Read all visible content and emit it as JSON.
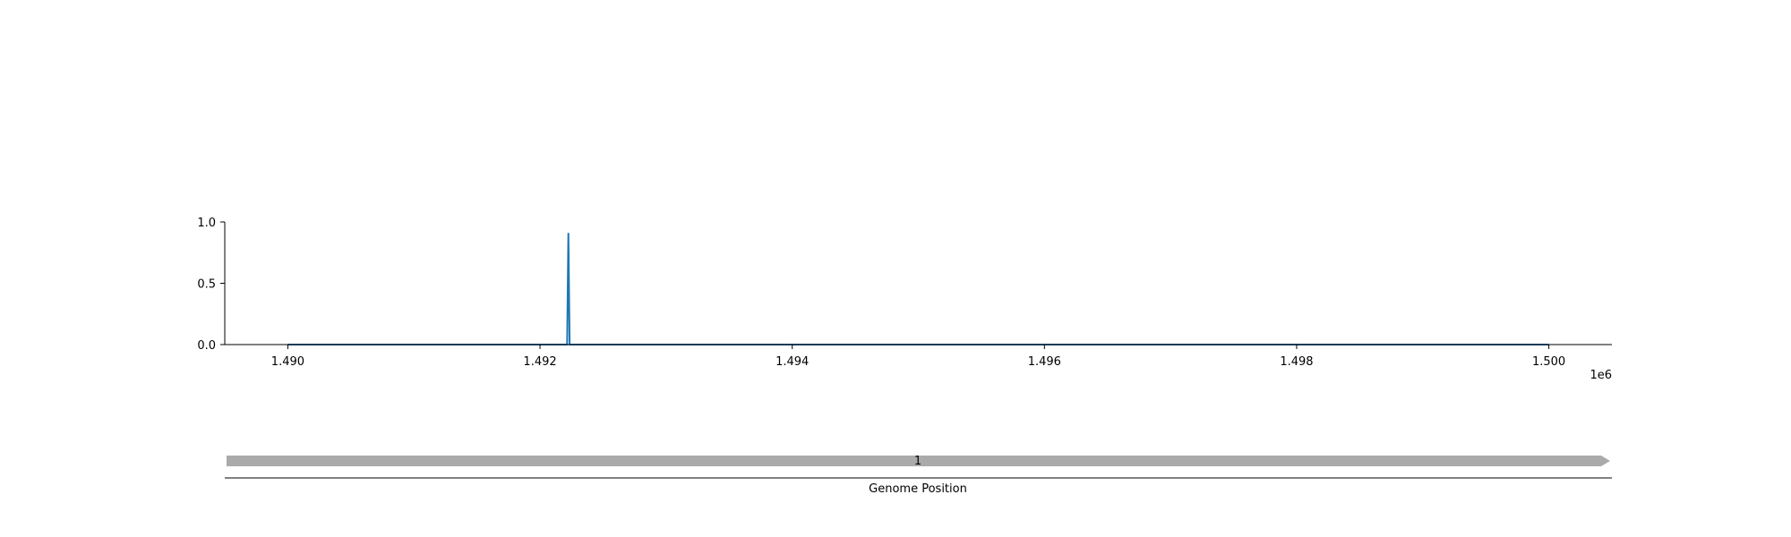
{
  "chart_data": {
    "type": "line",
    "x": [
      1490000,
      1492215,
      1492225,
      1492235,
      1500000
    ],
    "y": [
      0.0,
      0.0,
      0.91,
      0.0,
      0.0
    ],
    "xlim": [
      1489500,
      1500500
    ],
    "ylim": [
      0.0,
      1.0
    ],
    "xticks": [
      1490000,
      1492000,
      1494000,
      1496000,
      1498000,
      1500000
    ],
    "xtick_labels": [
      "1.490",
      "1.492",
      "1.494",
      "1.496",
      "1.498",
      "1.500"
    ],
    "yticks": [
      0.0,
      0.5,
      1.0
    ],
    "ytick_labels": [
      "0.0",
      "0.5",
      "1.0"
    ],
    "x_offset_label": "1e6",
    "line_color": "#1f77b4",
    "grid": false,
    "track": {
      "feature_label": "1",
      "feature_color": "#aaaaaa",
      "direction": "forward",
      "xlabel": "Genome Position"
    }
  }
}
